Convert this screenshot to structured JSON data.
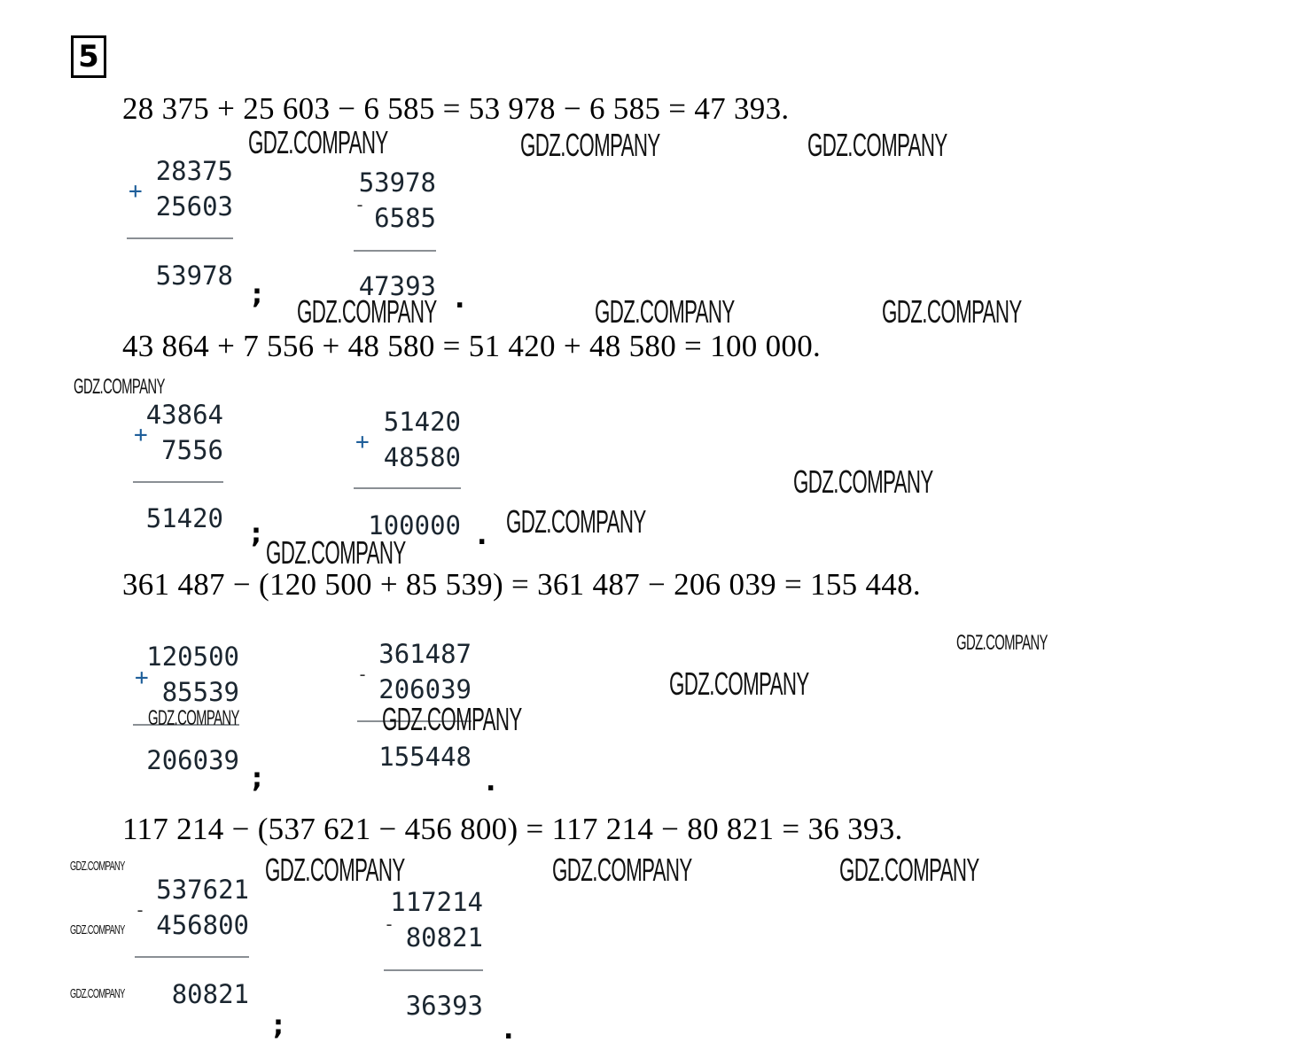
{
  "task_number": "5",
  "problems": [
    {
      "equation": "28 375 + 25 603 − 6 585 = 53 978 − 6 585 = 47 393.",
      "columns": [
        {
          "op": "+",
          "top": "28375",
          "bottom": "25603",
          "result": "53978",
          "punct": ";"
        },
        {
          "op": "-",
          "top": "53978",
          "bottom": "6585",
          "result": "47393",
          "punct": "."
        }
      ]
    },
    {
      "equation": "43 864 + 7 556 + 48 580 = 51 420 + 48 580 = 100 000.",
      "columns": [
        {
          "op": "+",
          "top": "43864",
          "bottom": "7556",
          "result": "51420",
          "punct": ";"
        },
        {
          "op": "+",
          "top": "51420",
          "bottom": "48580",
          "result": "100000",
          "punct": "."
        }
      ]
    },
    {
      "equation": "361 487 − (120 500 + 85 539) = 361 487 − 206 039 = 155 448.",
      "columns": [
        {
          "op": "+",
          "top": "120500",
          "bottom": "85539",
          "result": "206039",
          "punct": ";"
        },
        {
          "op": "-",
          "top": "361487",
          "bottom": "206039",
          "result": "155448",
          "punct": "."
        }
      ]
    },
    {
      "equation": "117 214 − (537 621 − 456 800) = 117 214 − 80 821 = 36 393.",
      "columns": [
        {
          "op": "-",
          "top": "537621",
          "bottom": "456800",
          "result": "80821",
          "punct": ";"
        },
        {
          "op": "-",
          "top": "117214",
          "bottom": "80821",
          "result": "36393",
          "punct": "."
        }
      ]
    }
  ],
  "watermark": "GDZ.COMPANY"
}
